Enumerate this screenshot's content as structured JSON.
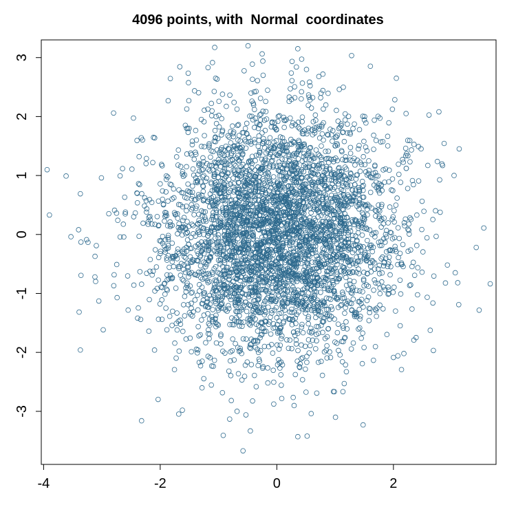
{
  "chart_data": {
    "type": "scatter",
    "title": "4096 points, with  Normal  coordinates",
    "xlabel": "",
    "ylabel": "",
    "xlim": [
      -4.04,
      3.76
    ],
    "ylim": [
      -3.9,
      3.3
    ],
    "x_ticks": [
      -4,
      -2,
      0,
      2
    ],
    "x_tick_labels": [
      "-4",
      "-2",
      "0",
      "2"
    ],
    "y_ticks": [
      -3,
      -2,
      -1,
      0,
      1,
      2,
      3
    ],
    "y_tick_labels": [
      "-3",
      "-2",
      "-1",
      "0",
      "1",
      "2",
      "3"
    ],
    "grid": false,
    "legend": "none",
    "n_points": 4096,
    "distribution": "bivariate standard normal",
    "marker": "open-circle",
    "point_color": "#2e6a8e",
    "sample_outliers": [
      [
        -3.9,
        0.33
      ],
      [
        -3.37,
        0.69
      ],
      [
        -3.36,
        -0.13
      ],
      [
        -3.37,
        -1.96
      ],
      [
        -3.4,
        0.08
      ],
      [
        -2.8,
        2.06
      ],
      [
        -2.32,
        -3.16
      ],
      [
        -1.62,
        -2.98
      ],
      [
        -0.58,
        -3.67
      ],
      [
        -0.53,
        -3.06
      ],
      [
        0.36,
        -3.43
      ],
      [
        0.52,
        -3.42
      ],
      [
        1.48,
        -3.23
      ],
      [
        0.36,
        3.15
      ],
      [
        -0.24,
        2.94
      ],
      [
        2.05,
        2.65
      ],
      [
        2.78,
        2.08
      ],
      [
        3.55,
        0.11
      ],
      [
        3.42,
        -0.22
      ],
      [
        3.12,
        -1.19
      ],
      [
        3.04,
        1.0
      ],
      [
        2.43,
        1.49
      ],
      [
        -1.18,
        2.83
      ],
      [
        0.79,
        2.72
      ]
    ]
  }
}
